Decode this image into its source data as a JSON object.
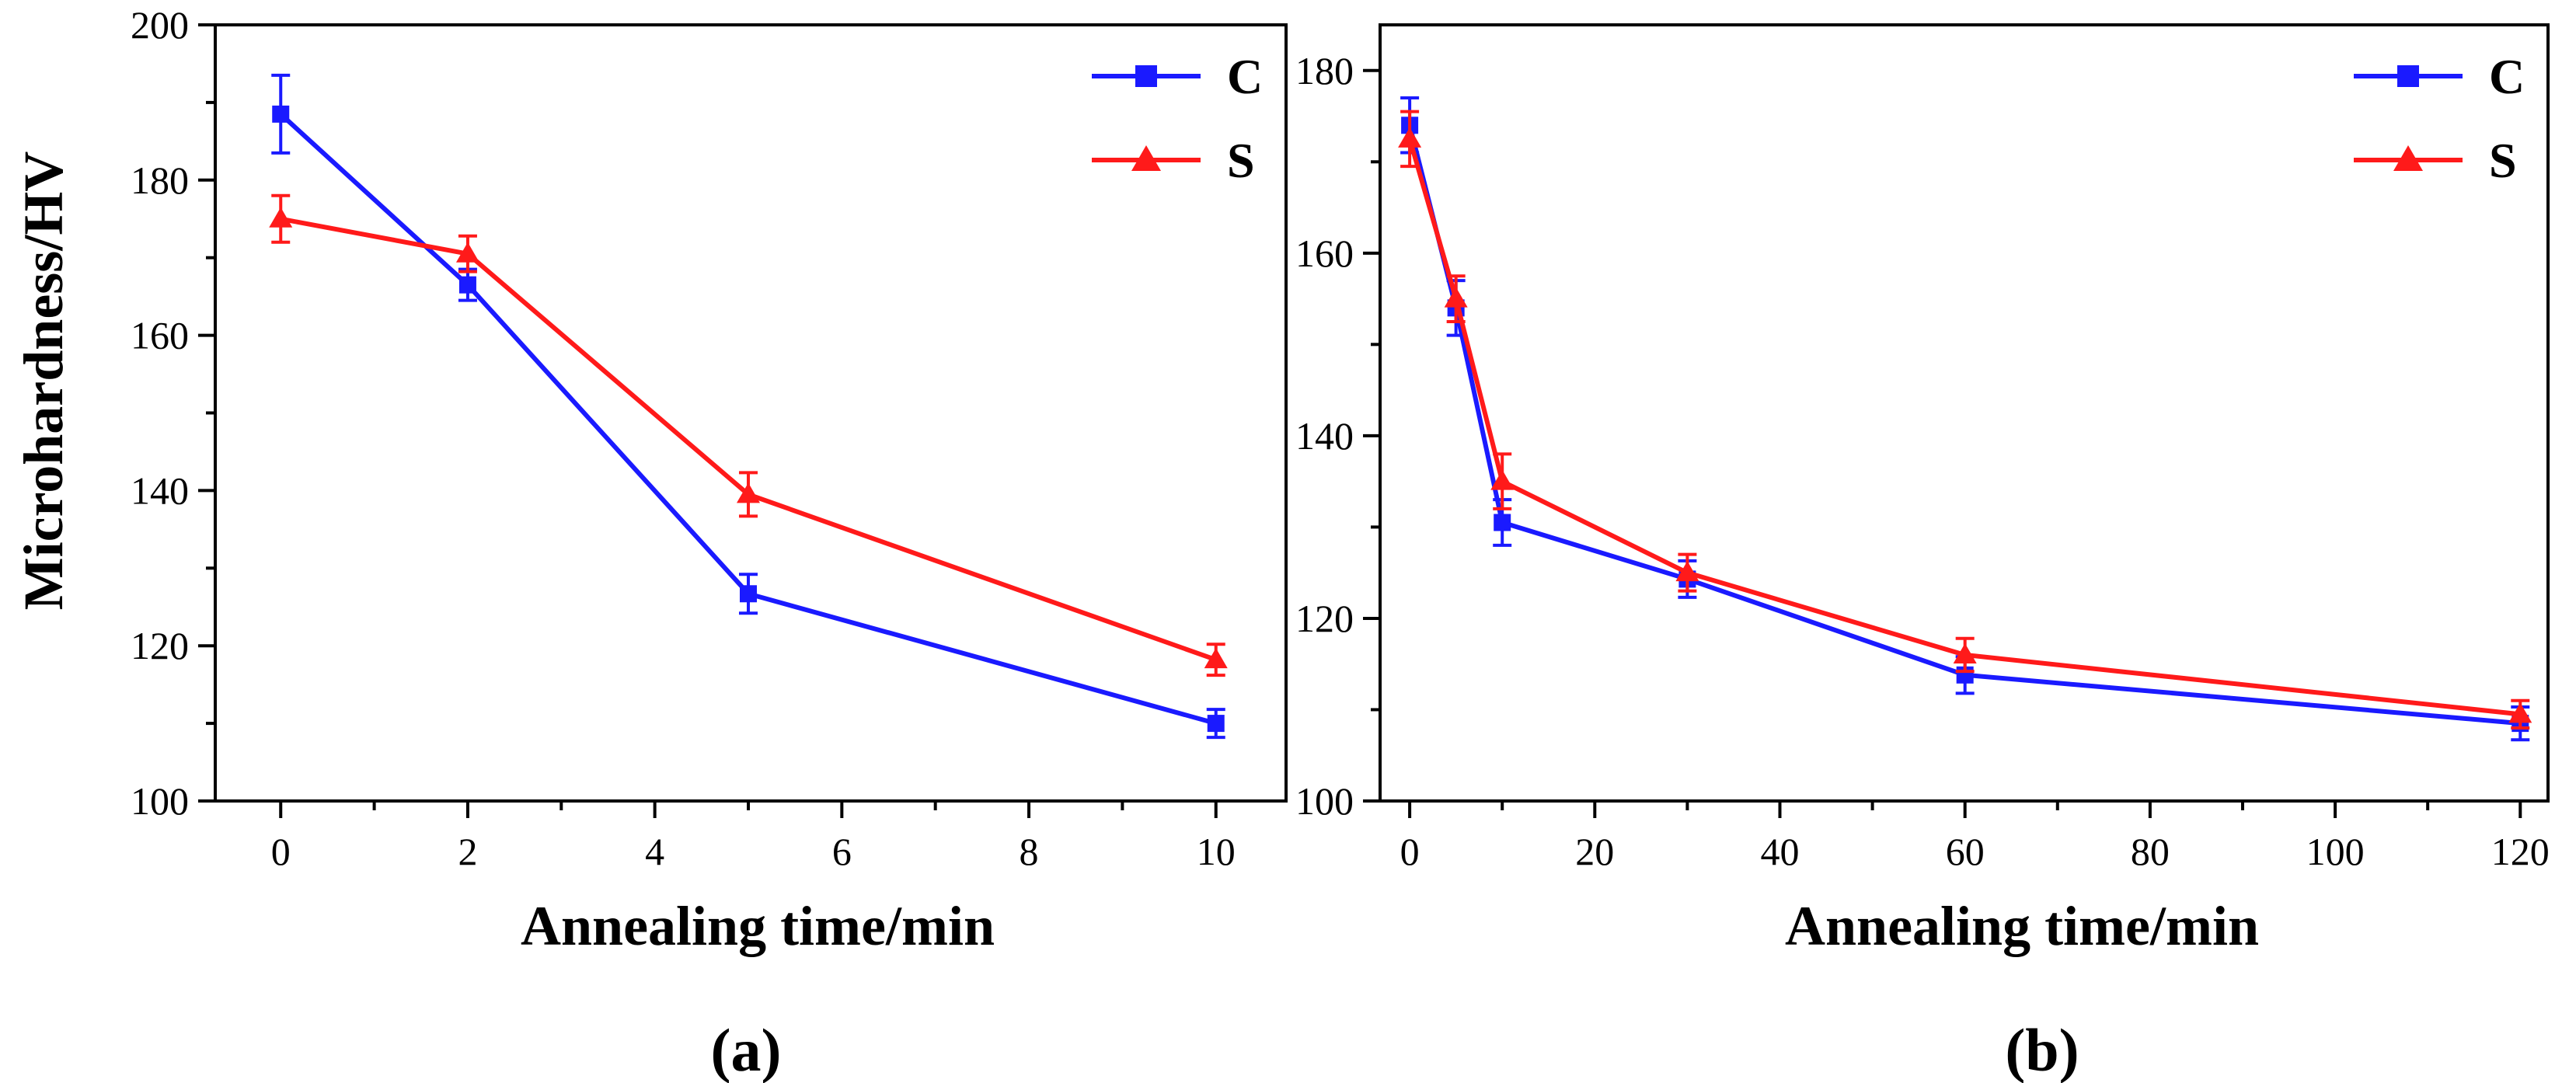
{
  "chart_data": [
    {
      "panel": "(a)",
      "type": "line",
      "xlabel": "Annealing time/min",
      "ylabel": "Microhardness/HV",
      "xlim": [
        -0.7,
        10.75
      ],
      "ylim": [
        100,
        200
      ],
      "xticks": [
        0,
        2,
        4,
        6,
        8,
        10
      ],
      "yticks": [
        100,
        120,
        140,
        160,
        180,
        200
      ],
      "legend_position": "top-right",
      "series": [
        {
          "name": "C",
          "color": "#1a1aff",
          "marker": "square",
          "x": [
            0,
            2,
            5,
            10
          ],
          "y": [
            188.5,
            166.5,
            126.7,
            110
          ],
          "err": [
            5,
            2,
            2.5,
            1.8
          ]
        },
        {
          "name": "S",
          "color": "#ff1a1a",
          "marker": "triangle",
          "x": [
            0,
            2,
            5,
            10
          ],
          "y": [
            175,
            170.5,
            139.5,
            118.2
          ],
          "err": [
            3,
            2.3,
            2.8,
            2
          ]
        }
      ]
    },
    {
      "panel": "(b)",
      "type": "line",
      "xlabel": "Annealing time/min",
      "ylabel": "",
      "xlim": [
        -3.2,
        123
      ],
      "ylim": [
        100,
        185
      ],
      "xticks": [
        0,
        20,
        40,
        60,
        80,
        100,
        120
      ],
      "yticks": [
        100,
        120,
        140,
        160,
        180
      ],
      "legend_position": "top-right",
      "series": [
        {
          "name": "C",
          "color": "#1a1aff",
          "marker": "square",
          "x": [
            0,
            5,
            10,
            30,
            60,
            120
          ],
          "y": [
            174,
            154,
            130.5,
            124.3,
            113.8,
            108.5
          ],
          "err": [
            3,
            3,
            2.5,
            2,
            2,
            1.8
          ]
        },
        {
          "name": "S",
          "color": "#ff1a1a",
          "marker": "triangle",
          "x": [
            0,
            5,
            10,
            30,
            60,
            120
          ],
          "y": [
            172.5,
            155,
            135,
            125,
            116,
            109.5
          ],
          "err": [
            3,
            2.5,
            3,
            2,
            1.8,
            1.5
          ]
        }
      ]
    }
  ]
}
